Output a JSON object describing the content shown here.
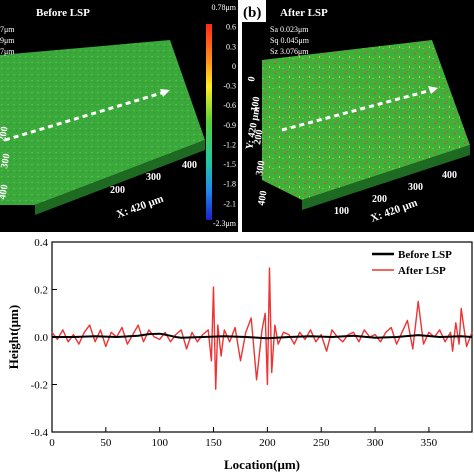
{
  "panel_a": {
    "title": "Before LSP",
    "stats": [
      "7μm",
      "9μm",
      "7μm"
    ],
    "colorbar_ticks": [
      "0.78μm",
      "0.6",
      "0.3",
      "0",
      "-0.3",
      "-0.6",
      "-0.9",
      "-1.2",
      "-1.5",
      "-1.8",
      "-2.1",
      "-2.3μm"
    ],
    "y_ticks": [
      "200",
      "300",
      "400"
    ],
    "x_ticks": [
      "200",
      "300",
      "400"
    ],
    "x_axis_label": "X: 420 μm",
    "colors": {
      "surface": "#3aa83a",
      "arrow": "#ffffff"
    }
  },
  "panel_b": {
    "label": "(b)",
    "title": "After LSP",
    "stats": [
      "Sa 0.023μm",
      "Sq 0.045μm",
      "Sz 3.076μm"
    ],
    "y_ticks": [
      "0",
      "100",
      "200",
      "300",
      "400"
    ],
    "y_axis_label": "Y: 420 μm",
    "x_ticks": [
      "100",
      "200",
      "300",
      "400"
    ],
    "x_axis_label": "X: 420 μm",
    "colors": {
      "surface": "#3fb03a",
      "spots": "#d9452f",
      "arrow": "#ffffff"
    }
  },
  "chart_data": {
    "type": "line",
    "xlabel": "Location(μm)",
    "ylabel": "Height(μm)",
    "xlim": [
      0,
      390
    ],
    "ylim": [
      -0.4,
      0.4
    ],
    "x_ticks": [
      0,
      50,
      100,
      150,
      200,
      250,
      300,
      350
    ],
    "y_ticks": [
      -0.4,
      -0.2,
      0.0,
      0.2,
      0.4
    ],
    "legend_position": "top-right",
    "grid": false,
    "series": [
      {
        "name": "Before LSP",
        "color": "#000000",
        "x": [
          0,
          20,
          40,
          60,
          80,
          90,
          100,
          105,
          110,
          115,
          120,
          140,
          160,
          180,
          200,
          220,
          240,
          260,
          280,
          300,
          320,
          340,
          360,
          380,
          390
        ],
        "y": [
          0.0,
          0.0,
          0.003,
          0.0,
          0.005,
          0.012,
          0.014,
          0.01,
          0.005,
          0.0,
          -0.003,
          0.0,
          0.003,
          0.0,
          -0.005,
          0.0,
          0.003,
          0.0,
          0.005,
          -0.003,
          0.0,
          0.008,
          0.0,
          0.003,
          0.0
        ]
      },
      {
        "name": "After LSP",
        "color": "#ee3333",
        "x": [
          0,
          5,
          10,
          15,
          20,
          25,
          30,
          35,
          40,
          45,
          50,
          55,
          60,
          65,
          70,
          75,
          80,
          85,
          90,
          95,
          100,
          105,
          110,
          115,
          120,
          125,
          130,
          135,
          140,
          145,
          148,
          150,
          152,
          154,
          157,
          160,
          165,
          170,
          175,
          180,
          185,
          190,
          195,
          198,
          200,
          202,
          204,
          207,
          210,
          215,
          220,
          225,
          230,
          235,
          240,
          245,
          250,
          255,
          260,
          265,
          270,
          275,
          280,
          285,
          290,
          295,
          300,
          305,
          310,
          315,
          320,
          325,
          330,
          335,
          340,
          345,
          350,
          355,
          360,
          365,
          370,
          372,
          375,
          378,
          380,
          385,
          390
        ],
        "y": [
          0.02,
          -0.01,
          0.03,
          -0.02,
          0.01,
          -0.03,
          0.02,
          0.05,
          -0.02,
          0.03,
          -0.04,
          0.02,
          0.0,
          0.04,
          -0.03,
          0.01,
          0.05,
          -0.02,
          0.03,
          0.0,
          -0.01,
          0.02,
          -0.02,
          0.01,
          0.03,
          -0.05,
          0.02,
          -0.02,
          0.01,
          0.03,
          -0.1,
          0.21,
          -0.22,
          0.05,
          -0.08,
          0.03,
          -0.02,
          0.04,
          -0.1,
          0.02,
          0.08,
          -0.18,
          0.03,
          0.1,
          -0.2,
          0.29,
          -0.15,
          0.05,
          -0.03,
          0.02,
          0.01,
          -0.03,
          0.02,
          -0.01,
          0.03,
          -0.02,
          0.01,
          -0.06,
          0.03,
          0.0,
          -0.02,
          0.01,
          0.02,
          -0.02,
          0.03,
          0.0,
          0.01,
          -0.02,
          0.02,
          0.04,
          -0.03,
          0.02,
          0.07,
          -0.05,
          0.15,
          -0.03,
          0.02,
          0.0,
          0.03,
          -0.02,
          0.02,
          -0.06,
          0.06,
          -0.03,
          0.12,
          -0.04,
          0.02
        ]
      }
    ]
  }
}
